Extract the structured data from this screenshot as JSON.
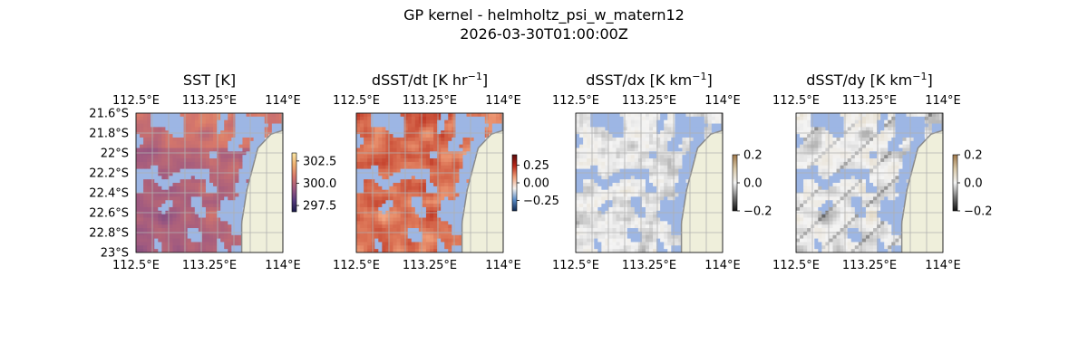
{
  "figure": {
    "title_line1": "GP kernel - helmholtz_psi_w_matern12",
    "title_line2": "2026-03-30T01:00:00Z"
  },
  "chart_data": [
    {
      "type": "heatmap",
      "title": "SST [K]",
      "title_unit_sup": "",
      "title_tail": "",
      "lon_ticks": [
        "112.5°E",
        "113.25°E",
        "114°E"
      ],
      "lon_tick_values": [
        112.5,
        113.25,
        114.0
      ],
      "lat_ticks": [
        "21.6°S",
        "21.8°S",
        "22°S",
        "22.2°S",
        "22.4°S",
        "22.6°S",
        "22.8°S",
        "23°S"
      ],
      "lat_tick_values": [
        -21.6,
        -21.8,
        -22.0,
        -22.2,
        -22.4,
        -22.6,
        -22.8,
        -23.0
      ],
      "show_lat_labels": true,
      "xlim": [
        112.5,
        114.0
      ],
      "ylim": [
        -23.0,
        -21.6
      ],
      "grid": true,
      "colorbar_ticks": [
        "302.5",
        "300.0",
        "297.5"
      ],
      "colorbar_tick_values": [
        302.5,
        300.0,
        297.5
      ],
      "colorbar_range": [
        296.8,
        303.4
      ],
      "colormap": [
        "#1a1a4a",
        "#5a3d80",
        "#a05a80",
        "#d8786a",
        "#f0b070",
        "#fbe8a6"
      ],
      "field": "sst"
    },
    {
      "type": "heatmap",
      "title": "dSST/dt [K hr",
      "title_unit_sup": "−1",
      "title_tail": "]",
      "lon_ticks": [
        "112.5°E",
        "113.25°E",
        "114°E"
      ],
      "lon_tick_values": [
        112.5,
        113.25,
        114.0
      ],
      "lat_ticks": [],
      "lat_tick_values": [],
      "show_lat_labels": false,
      "xlim": [
        112.5,
        114.0
      ],
      "ylim": [
        -23.0,
        -21.6
      ],
      "grid": true,
      "colorbar_ticks": [
        "0.25",
        "0.00",
        "−0.25"
      ],
      "colorbar_tick_values": [
        0.25,
        0.0,
        -0.25
      ],
      "colorbar_range": [
        -0.4,
        0.4
      ],
      "colormap": [
        "#0f2850",
        "#5a8cc8",
        "#f7f3ef",
        "#f0a07a",
        "#b82818",
        "#5a0a0a"
      ],
      "field": "dt"
    },
    {
      "type": "heatmap",
      "title": "dSST/dx [K km",
      "title_unit_sup": "−1",
      "title_tail": "]",
      "lon_ticks": [
        "112.5°E",
        "113.25°E",
        "114°E"
      ],
      "lon_tick_values": [
        112.5,
        113.25,
        114.0
      ],
      "lat_ticks": [],
      "lat_tick_values": [],
      "show_lat_labels": false,
      "xlim": [
        112.5,
        114.0
      ],
      "ylim": [
        -23.0,
        -21.6
      ],
      "grid": true,
      "colorbar_ticks": [
        "0.2",
        "0.0",
        "−0.2"
      ],
      "colorbar_tick_values": [
        0.2,
        0.0,
        -0.2
      ],
      "colorbar_range": [
        -0.2,
        0.2
      ],
      "colormap": [
        "#101010",
        "#7a7a7a",
        "#f4f4f4",
        "#d8c8a8",
        "#a0784a"
      ],
      "field": "dx"
    },
    {
      "type": "heatmap",
      "title": "dSST/dy [K km",
      "title_unit_sup": "−1",
      "title_tail": "]",
      "lon_ticks": [
        "112.5°E",
        "113.25°E",
        "114°E"
      ],
      "lon_tick_values": [
        112.5,
        113.25,
        114.0
      ],
      "lat_ticks": [],
      "lat_tick_values": [],
      "show_lat_labels": false,
      "xlim": [
        112.5,
        114.0
      ],
      "ylim": [
        -23.0,
        -21.6
      ],
      "grid": true,
      "colorbar_ticks": [
        "0.2",
        "0.0",
        "−0.2"
      ],
      "colorbar_tick_values": [
        0.2,
        0.0,
        -0.2
      ],
      "colorbar_range": [
        -0.2,
        0.2
      ],
      "colormap": [
        "#101010",
        "#7a7a7a",
        "#f4f4f4",
        "#d8c8a8",
        "#a0784a"
      ],
      "field": "dy"
    }
  ],
  "colors": {
    "missing_data": "#9db6e4",
    "land": "#efefdb",
    "coastline": "#8a8a8a",
    "grid": "#b0b0b0"
  }
}
